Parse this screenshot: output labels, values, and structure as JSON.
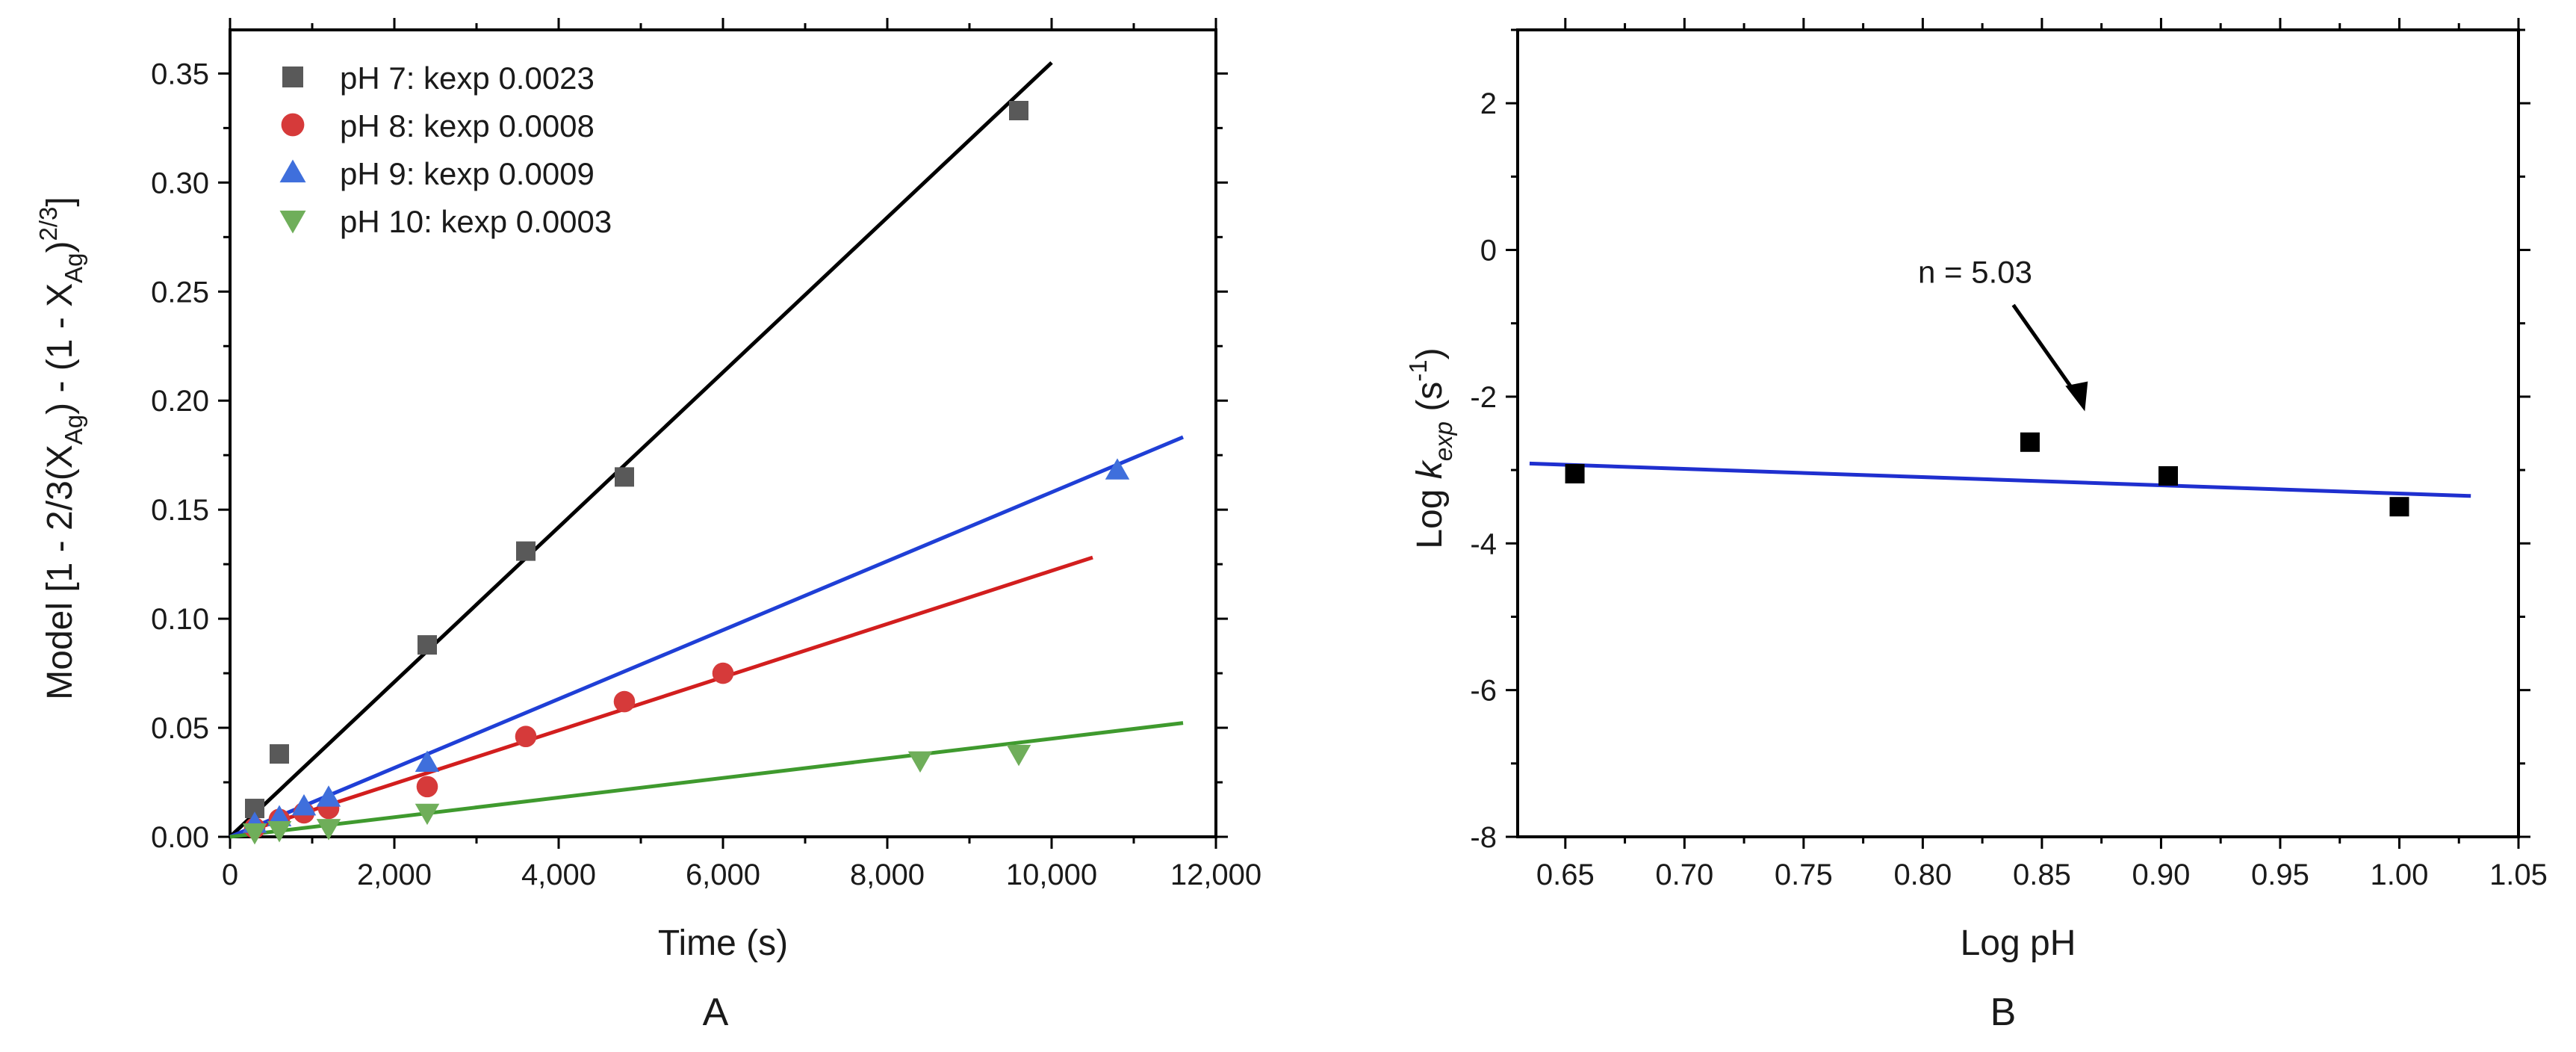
{
  "chart_data": [
    {
      "id": "A",
      "type": "scatter",
      "panel_label": "A",
      "xlabel": "Time (s)",
      "ylabel_parts": [
        "Model [1 - 2/3(X",
        "Ag",
        ") - (1 - X",
        "Ag",
        ")",
        "2/3",
        "]"
      ],
      "xlim": [
        0,
        12000
      ],
      "ylim": [
        0,
        0.37
      ],
      "xticks": [
        0,
        2000,
        4000,
        6000,
        8000,
        10000,
        12000
      ],
      "xtick_labels": [
        "0",
        "2,000",
        "4,000",
        "6,000",
        "8,000",
        "10,000",
        "12,000"
      ],
      "yticks": [
        0,
        0.05,
        0.1,
        0.15,
        0.2,
        0.25,
        0.3,
        0.35
      ],
      "ytick_labels": [
        "0.00",
        "0.05",
        "0.10",
        "0.15",
        "0.20",
        "0.25",
        "0.30",
        "0.35"
      ],
      "legend_position": "top-left",
      "series": [
        {
          "name": "pH 7: kexp 0.0023",
          "color": "#595959",
          "marker": "square",
          "points": [
            [
              300,
              0.013
            ],
            [
              600,
              0.038
            ],
            [
              2400,
              0.088
            ],
            [
              3600,
              0.131
            ],
            [
              4800,
              0.165
            ],
            [
              9600,
              0.333
            ]
          ],
          "fit_color": "#000000",
          "fit_x": [
            0,
            10000
          ],
          "fit_slope": 3.55e-05,
          "fit_intercept": 0
        },
        {
          "name": "pH 8: kexp 0.0008",
          "color": "#d63a3a",
          "marker": "circle",
          "points": [
            [
              300,
              0.004
            ],
            [
              600,
              0.008
            ],
            [
              900,
              0.011
            ],
            [
              1200,
              0.013
            ],
            [
              2400,
              0.023
            ],
            [
              3600,
              0.046
            ],
            [
              4800,
              0.062
            ],
            [
              6000,
              0.075
            ]
          ],
          "fit_color": "#d21e1e",
          "fit_x": [
            0,
            10500
          ],
          "fit_slope": 1.22e-05,
          "fit_intercept": 0
        },
        {
          "name": "pH 9: kexp 0.0009",
          "color": "#3f6fdc",
          "marker": "triangle-up",
          "points": [
            [
              300,
              0.006
            ],
            [
              600,
              0.009
            ],
            [
              900,
              0.014
            ],
            [
              1200,
              0.018
            ],
            [
              2400,
              0.034
            ],
            [
              10800,
              0.168
            ]
          ],
          "fit_color": "#1f3fd6",
          "fit_x": [
            0,
            11600
          ],
          "fit_slope": 1.58e-05,
          "fit_intercept": 0
        },
        {
          "name": "pH 10: kexp 0.0003",
          "color": "#6fae5a",
          "marker": "triangle-down",
          "points": [
            [
              300,
              0.002
            ],
            [
              600,
              0.003
            ],
            [
              1200,
              0.004
            ],
            [
              2400,
              0.011
            ],
            [
              8400,
              0.035
            ],
            [
              9600,
              0.038
            ]
          ],
          "fit_color": "#3f9a2e",
          "fit_x": [
            0,
            11600
          ],
          "fit_slope": 4.5e-06,
          "fit_intercept": 0
        }
      ]
    },
    {
      "id": "B",
      "type": "scatter",
      "panel_label": "B",
      "xlabel": "Log pH",
      "ylabel_parts": [
        "Log ",
        "k",
        "exp",
        "  (s",
        "-1",
        ")"
      ],
      "xlim": [
        0.63,
        1.05
      ],
      "ylim": [
        -8,
        3
      ],
      "xticks": [
        0.65,
        0.7,
        0.75,
        0.8,
        0.85,
        0.9,
        0.95,
        1.0,
        1.05
      ],
      "xtick_labels": [
        "0.65",
        "0.70",
        "0.75",
        "0.80",
        "0.85",
        "0.90",
        "0.95",
        "1.00",
        "1.05"
      ],
      "yticks": [
        -8,
        -6,
        -4,
        -2,
        0,
        2
      ],
      "ytick_labels": [
        "-8",
        "-6",
        "-4",
        "-2",
        "0",
        "2"
      ],
      "annotation": "n = 5.03",
      "series": [
        {
          "name": "Log kexp",
          "color": "#000000",
          "marker": "square",
          "points": [
            [
              0.654,
              -3.05
            ],
            [
              0.845,
              -2.62
            ],
            [
              0.903,
              -3.08
            ],
            [
              1.0,
              -3.5
            ]
          ],
          "fit_color": "#1f2fcf",
          "fit_x": [
            0.635,
            1.03
          ],
          "fit_slope": -1.12,
          "fit_intercept": -2.2
        }
      ]
    }
  ]
}
